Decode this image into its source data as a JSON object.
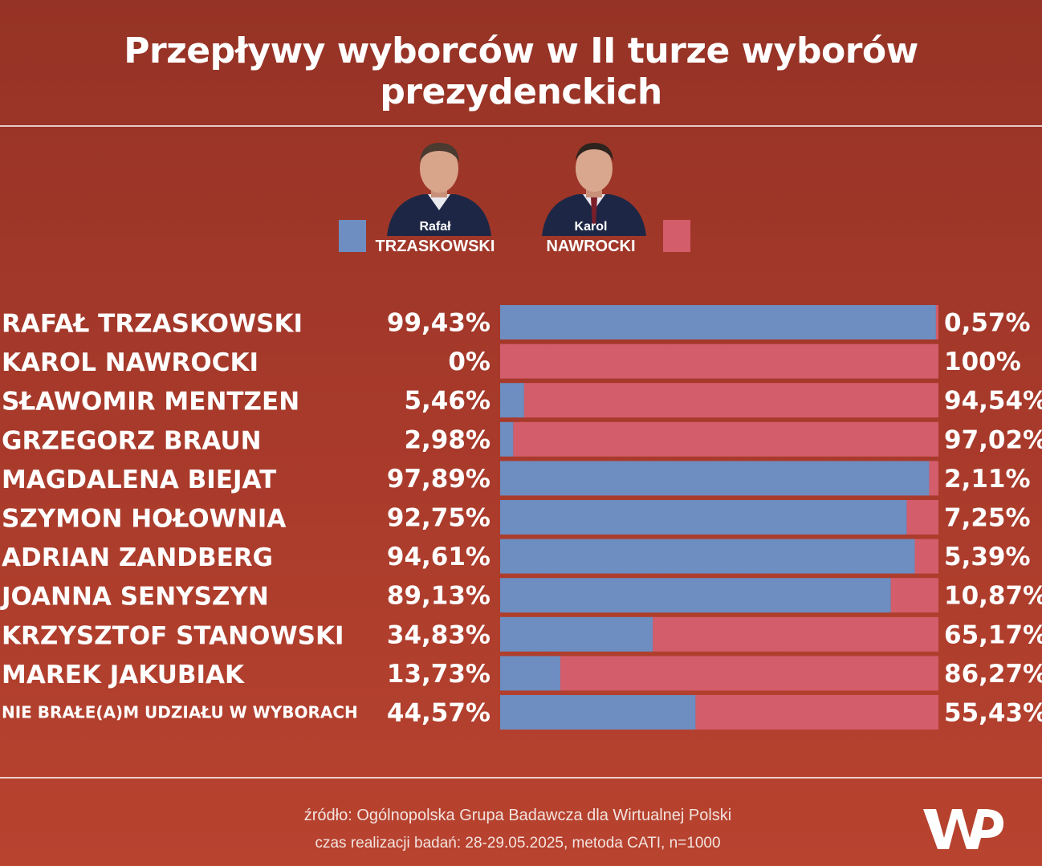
{
  "title": "Przepływy wyborców w II turze wyborów prezydenckich",
  "legend": [
    {
      "first": "Rafał",
      "last": "TRZASKOWSKI",
      "color": "#6e8dc0",
      "icon": "man-portrait-icon"
    },
    {
      "first": "Karol",
      "last": "NAWROCKI",
      "color": "#d35d6b",
      "icon": "man-portrait-icon"
    }
  ],
  "chart_data": {
    "type": "bar",
    "stacked": true,
    "orientation": "horizontal",
    "categories": [
      "RAFAŁ TRZASKOWSKI",
      "KAROL NAWROCKI",
      "SŁAWOMIR MENTZEN",
      "GRZEGORZ BRAUN",
      "MAGDALENA BIEJAT",
      "SZYMON HOŁOWNIA",
      "ADRIAN ZANDBERG",
      "JOANNA SENYSZYN",
      "KRZYSZTOF STANOWSKI",
      "MAREK JAKUBIAK",
      "NIE BRAŁE(A)M UDZIAŁU W WYBORACH"
    ],
    "series": [
      {
        "name": "Rafał TRZASKOWSKI",
        "color": "#6e8dc0",
        "values": [
          99.43,
          0,
          5.46,
          2.98,
          97.89,
          92.75,
          94.61,
          89.13,
          34.83,
          13.73,
          44.57
        ],
        "labels": [
          "99,43%",
          "0%",
          "5,46%",
          "2,98%",
          "97,89%",
          "92,75%",
          "94,61%",
          "89,13%",
          "34,83%",
          "13,73%",
          "44,57%"
        ]
      },
      {
        "name": "Karol NAWROCKI",
        "color": "#d35d6b",
        "values": [
          0.57,
          100,
          94.54,
          97.02,
          2.11,
          7.25,
          5.39,
          10.87,
          65.17,
          86.27,
          55.43
        ],
        "labels": [
          "0,57%",
          "100%",
          "94,54%",
          "97,02%",
          "2,11%",
          "7,25%",
          "5,39%",
          "10,87%",
          "65,17%",
          "86,27%",
          "55,43%"
        ]
      }
    ],
    "xlim": [
      0,
      100
    ],
    "grid": false
  },
  "footer": {
    "source": "źródło: Ogólnopolska Grupa Badawcza dla Wirtualnej Polski",
    "method": "czas realizacji badań: 28-29.05.2025, metoda CATI, n=1000"
  },
  "logo": {
    "text": "WP"
  }
}
